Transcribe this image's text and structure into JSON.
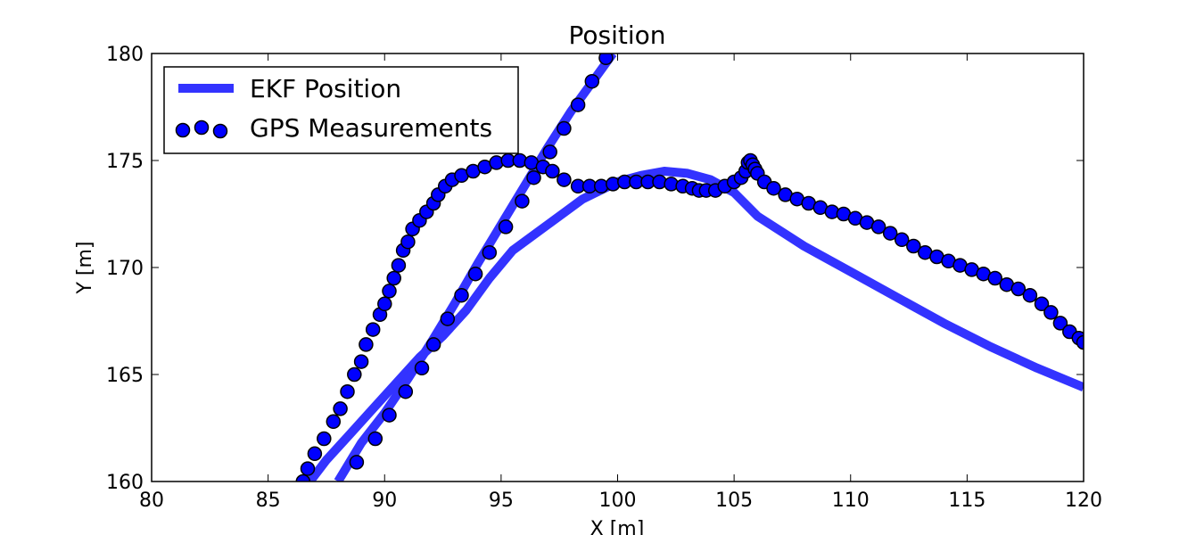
{
  "chart_data": {
    "type": "line",
    "title": "Position",
    "xlabel": "X [m]",
    "ylabel": "Y [m]",
    "xlim": [
      80,
      120
    ],
    "ylim": [
      160,
      180
    ],
    "xticks": [
      "80",
      "85",
      "90",
      "95",
      "100",
      "105",
      "110",
      "115",
      "120"
    ],
    "yticks": [
      "160",
      "165",
      "170",
      "175",
      "180"
    ],
    "grid": false,
    "legend_position": "top-left",
    "series": [
      {
        "name": "EKF Position",
        "kind": "line",
        "color": "#3333ff",
        "segments": [
          [
            [
              86.8,
              160
            ],
            [
              87.5,
              161
            ],
            [
              88.5,
              162.2
            ],
            [
              89.5,
              163.4
            ],
            [
              90.5,
              164.6
            ],
            [
              91.5,
              165.8
            ],
            [
              92.5,
              166.8
            ],
            [
              93.5,
              168
            ],
            [
              94.5,
              169.5
            ],
            [
              95.5,
              170.8
            ],
            [
              97,
              172
            ],
            [
              98.5,
              173.2
            ],
            [
              100,
              174
            ],
            [
              101,
              174.3
            ],
            [
              102,
              174.5
            ],
            [
              103,
              174.4
            ],
            [
              104,
              174.1
            ],
            [
              105,
              173.5
            ],
            [
              106,
              172.4
            ],
            [
              108,
              171
            ],
            [
              110,
              169.8
            ],
            [
              112,
              168.6
            ],
            [
              114,
              167.4
            ],
            [
              116,
              166.3
            ],
            [
              118,
              165.3
            ],
            [
              120,
              164.4
            ]
          ],
          [
            [
              88,
              160
            ],
            [
              89,
              161.8
            ],
            [
              90,
              163.2
            ],
            [
              91,
              164.8
            ],
            [
              92,
              166.5
            ],
            [
              93,
              168.3
            ],
            [
              94,
              170.2
            ],
            [
              95,
              172
            ],
            [
              96,
              173.8
            ],
            [
              97,
              175.6
            ],
            [
              98,
              177.3
            ],
            [
              99,
              178.8
            ],
            [
              99.8,
              180
            ]
          ]
        ]
      },
      {
        "name": "GPS Measurements",
        "kind": "scatter",
        "color": "#0000ff",
        "points": [
          [
            86.5,
            160
          ],
          [
            86.7,
            160.6
          ],
          [
            87,
            161.3
          ],
          [
            87.4,
            162
          ],
          [
            87.8,
            162.8
          ],
          [
            88.1,
            163.4
          ],
          [
            88.4,
            164.2
          ],
          [
            88.7,
            165
          ],
          [
            89,
            165.6
          ],
          [
            89.2,
            166.4
          ],
          [
            89.5,
            167.1
          ],
          [
            89.8,
            167.8
          ],
          [
            90,
            168.3
          ],
          [
            90.2,
            168.9
          ],
          [
            90.4,
            169.5
          ],
          [
            90.6,
            170.1
          ],
          [
            90.8,
            170.8
          ],
          [
            91,
            171.2
          ],
          [
            91.2,
            171.8
          ],
          [
            91.5,
            172.2
          ],
          [
            91.8,
            172.6
          ],
          [
            92.1,
            173
          ],
          [
            92.3,
            173.4
          ],
          [
            92.6,
            173.8
          ],
          [
            92.9,
            174.1
          ],
          [
            93.3,
            174.3
          ],
          [
            93.8,
            174.5
          ],
          [
            94.3,
            174.7
          ],
          [
            94.8,
            174.9
          ],
          [
            95.3,
            175
          ],
          [
            95.8,
            175
          ],
          [
            96.3,
            174.9
          ],
          [
            96.8,
            174.7
          ],
          [
            97.2,
            174.5
          ],
          [
            97.7,
            174.1
          ],
          [
            98.3,
            173.8
          ],
          [
            98.8,
            173.8
          ],
          [
            99.3,
            173.8
          ],
          [
            99.8,
            173.9
          ],
          [
            100.3,
            174
          ],
          [
            100.8,
            174
          ],
          [
            101.3,
            174
          ],
          [
            101.8,
            174
          ],
          [
            102.3,
            173.9
          ],
          [
            102.8,
            173.8
          ],
          [
            103.2,
            173.7
          ],
          [
            103.5,
            173.6
          ],
          [
            103.8,
            173.6
          ],
          [
            104.2,
            173.6
          ],
          [
            104.6,
            173.8
          ],
          [
            105,
            174
          ],
          [
            105.3,
            174.2
          ],
          [
            105.5,
            174.5
          ],
          [
            105.6,
            174.9
          ],
          [
            105.7,
            175
          ],
          [
            105.8,
            174.8
          ],
          [
            105.9,
            174.6
          ],
          [
            106,
            174.4
          ],
          [
            106.3,
            174
          ],
          [
            106.7,
            173.7
          ],
          [
            107.2,
            173.4
          ],
          [
            107.7,
            173.2
          ],
          [
            108.2,
            173
          ],
          [
            108.7,
            172.8
          ],
          [
            109.2,
            172.6
          ],
          [
            109.7,
            172.5
          ],
          [
            110.2,
            172.3
          ],
          [
            110.7,
            172.1
          ],
          [
            111.2,
            171.9
          ],
          [
            111.7,
            171.6
          ],
          [
            112.2,
            171.3
          ],
          [
            112.7,
            171
          ],
          [
            113.2,
            170.7
          ],
          [
            113.7,
            170.5
          ],
          [
            114.2,
            170.3
          ],
          [
            114.7,
            170.1
          ],
          [
            115.2,
            169.9
          ],
          [
            115.7,
            169.7
          ],
          [
            116.2,
            169.5
          ],
          [
            116.7,
            169.2
          ],
          [
            117.2,
            169
          ],
          [
            117.7,
            168.7
          ],
          [
            118.2,
            168.3
          ],
          [
            118.6,
            167.9
          ],
          [
            119,
            167.4
          ],
          [
            119.4,
            167
          ],
          [
            119.8,
            166.7
          ],
          [
            120,
            166.5
          ],
          [
            88.8,
            160.9
          ],
          [
            89.6,
            162
          ],
          [
            90.2,
            163.1
          ],
          [
            90.9,
            164.2
          ],
          [
            91.6,
            165.3
          ],
          [
            92.1,
            166.4
          ],
          [
            92.7,
            167.6
          ],
          [
            93.3,
            168.7
          ],
          [
            93.9,
            169.7
          ],
          [
            94.5,
            170.7
          ],
          [
            95.2,
            171.9
          ],
          [
            95.9,
            173.1
          ],
          [
            96.4,
            174.2
          ],
          [
            97.1,
            175.4
          ],
          [
            97.7,
            176.5
          ],
          [
            98.3,
            177.6
          ],
          [
            98.9,
            178.7
          ],
          [
            99.5,
            179.8
          ]
        ]
      }
    ]
  }
}
